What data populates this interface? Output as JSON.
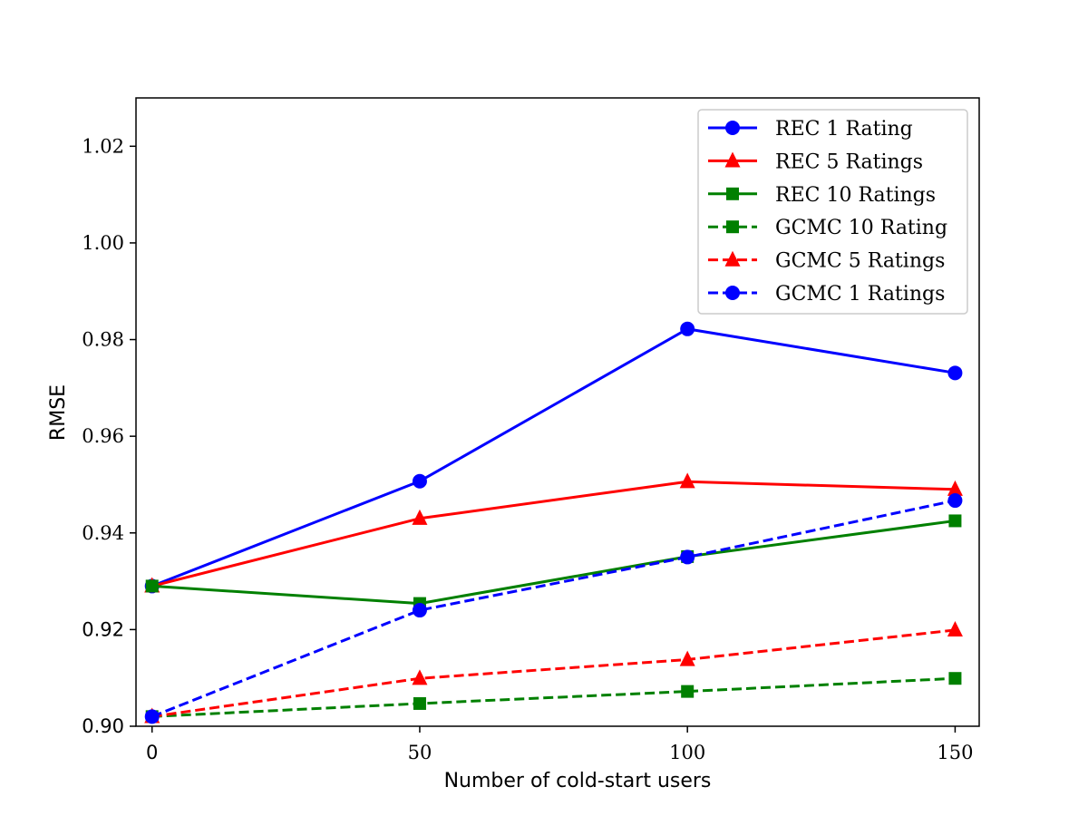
{
  "chart_data": {
    "type": "line",
    "title": "",
    "xlabel": "Number of cold-start users",
    "ylabel": "RMSE",
    "x": [
      0,
      50,
      100,
      150
    ],
    "xlim": [
      -3,
      154.5
    ],
    "ylim": [
      0.9,
      1.03
    ],
    "xticks": [
      0,
      50,
      100,
      150
    ],
    "xtick_labels": [
      {
        "value": 0,
        "label": "0",
        "style": "sans"
      },
      {
        "value": 50,
        "label": "50",
        "style": "serif"
      },
      {
        "value": 100,
        "label": "100",
        "style": "serif"
      },
      {
        "value": 150,
        "label": "150",
        "style": "serif"
      }
    ],
    "ytick_labels": [
      {
        "value": 0.9,
        "label": "0.90",
        "style": "sans"
      },
      {
        "value": 0.92,
        "label": "0.92",
        "style": "sans"
      },
      {
        "value": 0.94,
        "label": "0.94",
        "style": "serif"
      },
      {
        "value": 0.96,
        "label": "0.96",
        "style": "serif"
      },
      {
        "value": 0.98,
        "label": "0.98",
        "style": "serif"
      },
      {
        "value": 1.0,
        "label": "1.00",
        "style": "serif"
      },
      {
        "value": 1.02,
        "label": "1.02",
        "style": "serif"
      }
    ],
    "grid": false,
    "legend_position": "top-right",
    "series": [
      {
        "name": "REC 1 Rating",
        "color": "#0000ff",
        "dash": "solid",
        "marker": "circle",
        "values": [
          0.929,
          0.9507,
          0.9822,
          0.9731
        ]
      },
      {
        "name": "REC 5 Ratings",
        "color": "#ff0000",
        "dash": "solid",
        "marker": "triangle",
        "values": [
          0.929,
          0.943,
          0.9506,
          0.949
        ]
      },
      {
        "name": "REC 10 Ratings",
        "color": "#008000",
        "dash": "solid",
        "marker": "square",
        "values": [
          0.929,
          0.9254,
          0.9351,
          0.9425
        ]
      },
      {
        "name": "GCMC 10 Rating",
        "color": "#008000",
        "dash": "dashed",
        "marker": "square",
        "values": [
          0.902,
          0.9047,
          0.9072,
          0.9099
        ]
      },
      {
        "name": "GCMC 5 Ratings",
        "color": "#ff0000",
        "dash": "dashed",
        "marker": "triangle",
        "values": [
          0.902,
          0.9099,
          0.9138,
          0.9199
        ]
      },
      {
        "name": "GCMC 1 Ratings",
        "color": "#0000ff",
        "dash": "dashed",
        "marker": "circle",
        "values": [
          0.902,
          0.924,
          0.935,
          0.9467
        ]
      }
    ]
  }
}
